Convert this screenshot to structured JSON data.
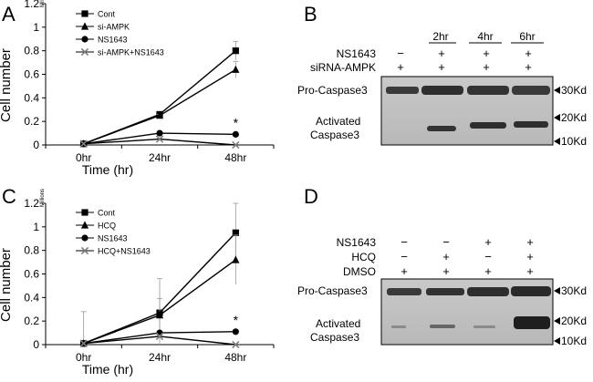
{
  "panels": {
    "A": "A",
    "B": "B",
    "C": "C",
    "D": "D"
  },
  "chart_data": [
    {
      "panel": "A",
      "type": "line",
      "ylabel": "Cell number",
      "yunit": "Millions",
      "xlabel": "Time (hr)",
      "categories": [
        "0hr",
        "24hr",
        "48hr"
      ],
      "ylim": [
        0,
        1.2
      ],
      "yticks": [
        "0",
        "0.2",
        "0.4",
        "0.6",
        "0.8",
        "1",
        "1.2"
      ],
      "marker_colors": {
        "line": "#000000",
        "cross": "#7f7f7f"
      },
      "series": [
        {
          "name": "Cont",
          "marker": "square",
          "values": [
            0.01,
            0.26,
            0.8
          ],
          "err": [
            0.0,
            0.01,
            0.08
          ]
        },
        {
          "name": "si-AMPK",
          "marker": "triangle",
          "values": [
            0.01,
            0.25,
            0.64
          ],
          "err": [
            0.0,
            0.01,
            0.07
          ]
        },
        {
          "name": "NS1643",
          "marker": "circle",
          "values": [
            0.01,
            0.1,
            0.09
          ],
          "err": [
            0.0,
            0.01,
            0.01
          ]
        },
        {
          "name": "si-AMPK+NS1643",
          "marker": "cross",
          "values": [
            0.01,
            0.05,
            0.0
          ],
          "err": [
            0.0,
            0.01,
            0.0
          ]
        }
      ],
      "annotation": "*"
    },
    {
      "panel": "C",
      "type": "line",
      "ylabel": "Cell number",
      "yunit": "Millions",
      "xlabel": "Time (hr)",
      "categories": [
        "0hr",
        "24hr",
        "48hr"
      ],
      "ylim": [
        0,
        1.2
      ],
      "yticks": [
        "0",
        "0.2",
        "0.4",
        "0.6",
        "0.8",
        "1",
        "1.2"
      ],
      "series": [
        {
          "name": "Cont",
          "marker": "square",
          "values": [
            0.01,
            0.27,
            0.95
          ],
          "err": [
            0.27,
            0.29,
            0.25
          ]
        },
        {
          "name": "HCQ",
          "marker": "triangle",
          "values": [
            0.01,
            0.25,
            0.72
          ],
          "err": [
            0.0,
            0.14,
            0.21
          ]
        },
        {
          "name": "NS1643",
          "marker": "circle",
          "values": [
            0.01,
            0.1,
            0.11
          ],
          "err": [
            0.0,
            0.01,
            0.01
          ]
        },
        {
          "name": "HCQ+NS1643",
          "marker": "cross",
          "values": [
            0.01,
            0.07,
            0.0
          ],
          "err": [
            0.0,
            0.01,
            0.0
          ]
        }
      ],
      "annotation": "*"
    }
  ],
  "blot_B": {
    "times": [
      "2hr",
      "4hr",
      "6hr"
    ],
    "rows": [
      {
        "label": "NS1643",
        "values": [
          "−",
          "+",
          "+",
          "+"
        ]
      },
      {
        "label": "siRNA-AMPK",
        "values": [
          "+",
          "+",
          "+",
          "+"
        ]
      }
    ],
    "band_labels": [
      "Pro-Caspase3",
      "Activated",
      "Caspase3"
    ],
    "markers": [
      "30Kd",
      "20Kd",
      "10Kd"
    ]
  },
  "blot_D": {
    "rows": [
      {
        "label": "NS1643",
        "values": [
          "−",
          "−",
          "+",
          "+"
        ]
      },
      {
        "label": "HCQ",
        "values": [
          "−",
          "+",
          "−",
          "+"
        ]
      },
      {
        "label": "DMSO",
        "values": [
          "+",
          "+",
          "+",
          "+"
        ]
      }
    ],
    "band_labels": [
      "Pro-Caspase3",
      "Activated",
      "Caspase3"
    ],
    "markers": [
      "30Kd",
      "20Kd",
      "10Kd"
    ]
  }
}
